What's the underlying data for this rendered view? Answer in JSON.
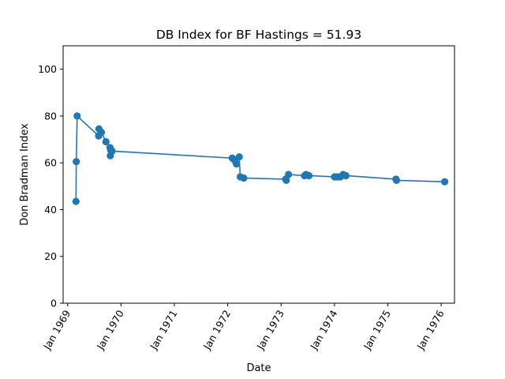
{
  "chart_data": {
    "type": "line",
    "title": "DB Index for BF Hastings = 51.93",
    "xlabel": "Date",
    "ylabel": "Don Bradman Index",
    "ylim": [
      0,
      110
    ],
    "xlim": [
      "1968-12-01",
      "1976-04-01"
    ],
    "grid": false,
    "legend": "none",
    "color": "#1f77b4",
    "yticks": [
      0,
      20,
      40,
      60,
      80,
      100
    ],
    "xticks": [
      {
        "date": "1969-01-01",
        "label": "Jan 1969"
      },
      {
        "date": "1970-01-01",
        "label": "Jan 1970"
      },
      {
        "date": "1971-01-01",
        "label": "Jan 1971"
      },
      {
        "date": "1972-01-01",
        "label": "Jan 1972"
      },
      {
        "date": "1973-01-01",
        "label": "Jan 1973"
      },
      {
        "date": "1974-01-01",
        "label": "Jan 1974"
      },
      {
        "date": "1975-01-01",
        "label": "Jan 1975"
      },
      {
        "date": "1976-01-01",
        "label": "Jan 1976"
      }
    ],
    "points": [
      {
        "x": "1969-02-27",
        "y": 43.5
      },
      {
        "x": "1969-03-01",
        "y": 60.5
      },
      {
        "x": "1969-03-07",
        "y": 80.0
      },
      {
        "x": "1969-08-01",
        "y": 71.5
      },
      {
        "x": "1969-08-03",
        "y": 74.5
      },
      {
        "x": "1969-08-20",
        "y": 73.0
      },
      {
        "x": "1969-09-20",
        "y": 69.0
      },
      {
        "x": "1969-10-18",
        "y": 66.5
      },
      {
        "x": "1969-10-20",
        "y": 63.0
      },
      {
        "x": "1969-10-22",
        "y": 65.5
      },
      {
        "x": "1969-11-01",
        "y": 65.0
      },
      {
        "x": "1972-02-01",
        "y": 62.0
      },
      {
        "x": "1972-02-18",
        "y": 61.0
      },
      {
        "x": "1972-03-01",
        "y": 59.5
      },
      {
        "x": "1972-03-20",
        "y": 62.5
      },
      {
        "x": "1972-03-27",
        "y": 54.0
      },
      {
        "x": "1972-04-20",
        "y": 53.5
      },
      {
        "x": "1973-02-01",
        "y": 53.0
      },
      {
        "x": "1973-02-05",
        "y": 52.5
      },
      {
        "x": "1973-02-20",
        "y": 55.0
      },
      {
        "x": "1973-06-10",
        "y": 54.5
      },
      {
        "x": "1973-06-20",
        "y": 55.0
      },
      {
        "x": "1973-07-10",
        "y": 54.5
      },
      {
        "x": "1974-01-01",
        "y": 54.0
      },
      {
        "x": "1974-01-20",
        "y": 54.0
      },
      {
        "x": "1974-02-10",
        "y": 54.0
      },
      {
        "x": "1974-03-01",
        "y": 55.0
      },
      {
        "x": "1974-03-20",
        "y": 54.5
      },
      {
        "x": "1975-02-25",
        "y": 53.0
      },
      {
        "x": "1975-03-01",
        "y": 52.5
      },
      {
        "x": "1976-01-25",
        "y": 51.9
      }
    ]
  }
}
